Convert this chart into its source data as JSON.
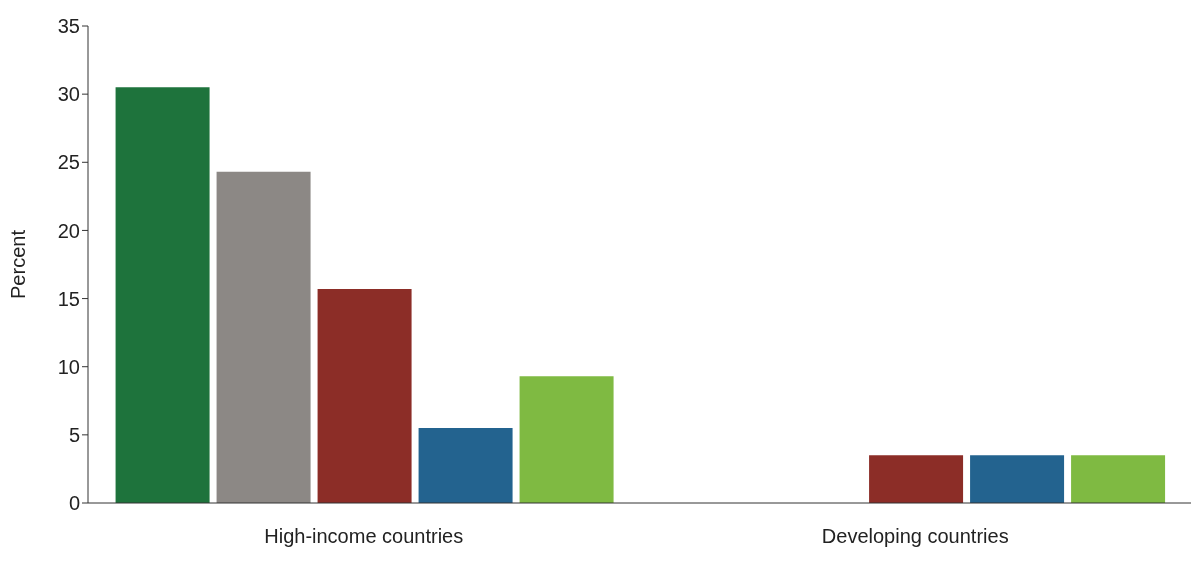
{
  "chart_data": {
    "type": "bar",
    "ylabel": "Percent",
    "categories": [
      "High-income countries",
      "Developing countries"
    ],
    "series": [
      {
        "color": "#1e733c",
        "values": [
          30.5,
          null
        ]
      },
      {
        "color": "#8c8885",
        "values": [
          24.3,
          null
        ]
      },
      {
        "color": "#8c2d27",
        "values": [
          15.7,
          3.5
        ]
      },
      {
        "color": "#23638f",
        "values": [
          5.5,
          3.5
        ]
      },
      {
        "color": "#7fba42",
        "values": [
          9.3,
          3.5
        ]
      }
    ],
    "ylim": [
      0,
      35
    ],
    "yticks": [
      0,
      5,
      10,
      15,
      20,
      25,
      30,
      35
    ],
    "grid": false,
    "legend": false
  }
}
